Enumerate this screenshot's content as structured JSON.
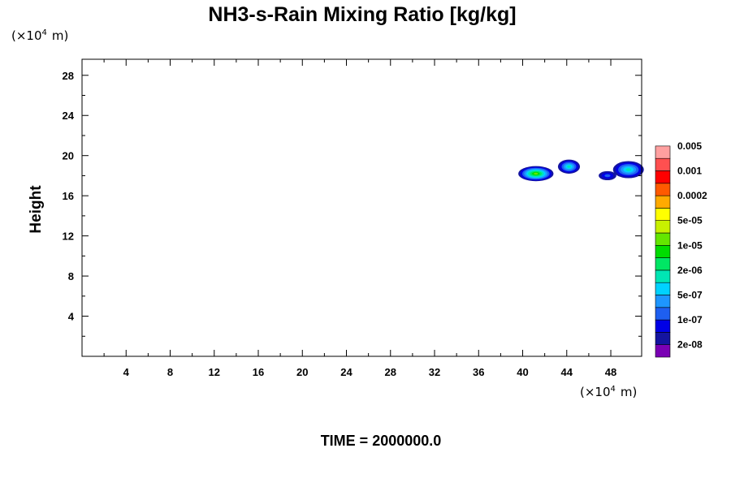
{
  "chart_data": {
    "type": "heatmap",
    "title": "NH3-s-Rain Mixing Ratio [kg/kg]",
    "ylabel": "Height",
    "xlabel": "",
    "x_unit": "(×10⁴ m)",
    "y_unit": "(×10⁴ m)",
    "x_scale_label": "×10",
    "y_scale_label": "×10",
    "scale_exponent": "4",
    "unit_m": "m",
    "xlim": [
      0,
      50.8
    ],
    "ylim": [
      0,
      29.6
    ],
    "x_ticks": [
      4,
      8,
      12,
      16,
      20,
      24,
      28,
      32,
      36,
      40,
      44,
      48
    ],
    "y_ticks": [
      4,
      8,
      12,
      16,
      20,
      24,
      28
    ],
    "time_label": "TIME = 2000000.0",
    "colorbar": {
      "colors": [
        "#7a00b4",
        "#1414a0",
        "#0000e6",
        "#1e5ff0",
        "#1e96ff",
        "#00d2ff",
        "#00e6b4",
        "#00e664",
        "#00dc00",
        "#64e600",
        "#c8f000",
        "#ffff00",
        "#ffaa00",
        "#ff5a00",
        "#ff0000",
        "#ff5050",
        "#ffa0a0"
      ],
      "labels": [
        "2e-08",
        "1e-07",
        "5e-07",
        "2e-06",
        "1e-05",
        "5e-05",
        "0.0002",
        "0.001",
        "0.005"
      ]
    },
    "clouds": [
      {
        "x": 41.2,
        "y": 18.2,
        "rx": 1.6,
        "ry": 0.75,
        "peak_level": 8
      },
      {
        "x": 44.2,
        "y": 18.9,
        "rx": 1.0,
        "ry": 0.7,
        "peak_level": 5
      },
      {
        "x": 47.7,
        "y": 18.0,
        "rx": 0.8,
        "ry": 0.45,
        "peak_level": 2
      },
      {
        "x": 49.6,
        "y": 18.6,
        "rx": 1.4,
        "ry": 0.85,
        "peak_level": 5
      }
    ]
  }
}
